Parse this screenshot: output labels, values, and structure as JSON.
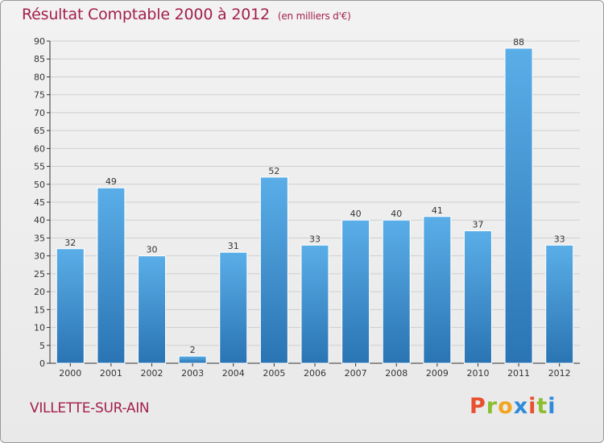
{
  "header": {
    "title": "Résultat Comptable 2000 à 2012",
    "unit": "(en milliers d'€)"
  },
  "footer": {
    "city": "VILLETTE-SUR-AIN",
    "brand": "Proxiti",
    "brand_colors": [
      "#e8502f",
      "#8bbf2f",
      "#f2a61f",
      "#2f8bd9",
      "#e8502f",
      "#8bbf2f",
      "#2f8bd9"
    ]
  },
  "colors": {
    "bar_top": "#5aaee8",
    "bar_bottom": "#2a74b3",
    "axis": "#333333",
    "grid": "#cfcfcf",
    "title": "#a31f4a"
  },
  "chart_data": {
    "type": "bar",
    "title": "Résultat Comptable 2000 à 2012",
    "categories": [
      "2000",
      "2001",
      "2002",
      "2003",
      "2004",
      "2005",
      "2006",
      "2007",
      "2008",
      "2009",
      "2010",
      "2011",
      "2012"
    ],
    "values": [
      32,
      49,
      30,
      2,
      31,
      52,
      33,
      40,
      40,
      41,
      37,
      88,
      33
    ],
    "ylim": [
      0,
      90
    ],
    "yticks": [
      0,
      5,
      10,
      15,
      20,
      25,
      30,
      35,
      40,
      45,
      50,
      55,
      60,
      65,
      70,
      75,
      80,
      85,
      90
    ],
    "grid": true,
    "legend": "none"
  }
}
